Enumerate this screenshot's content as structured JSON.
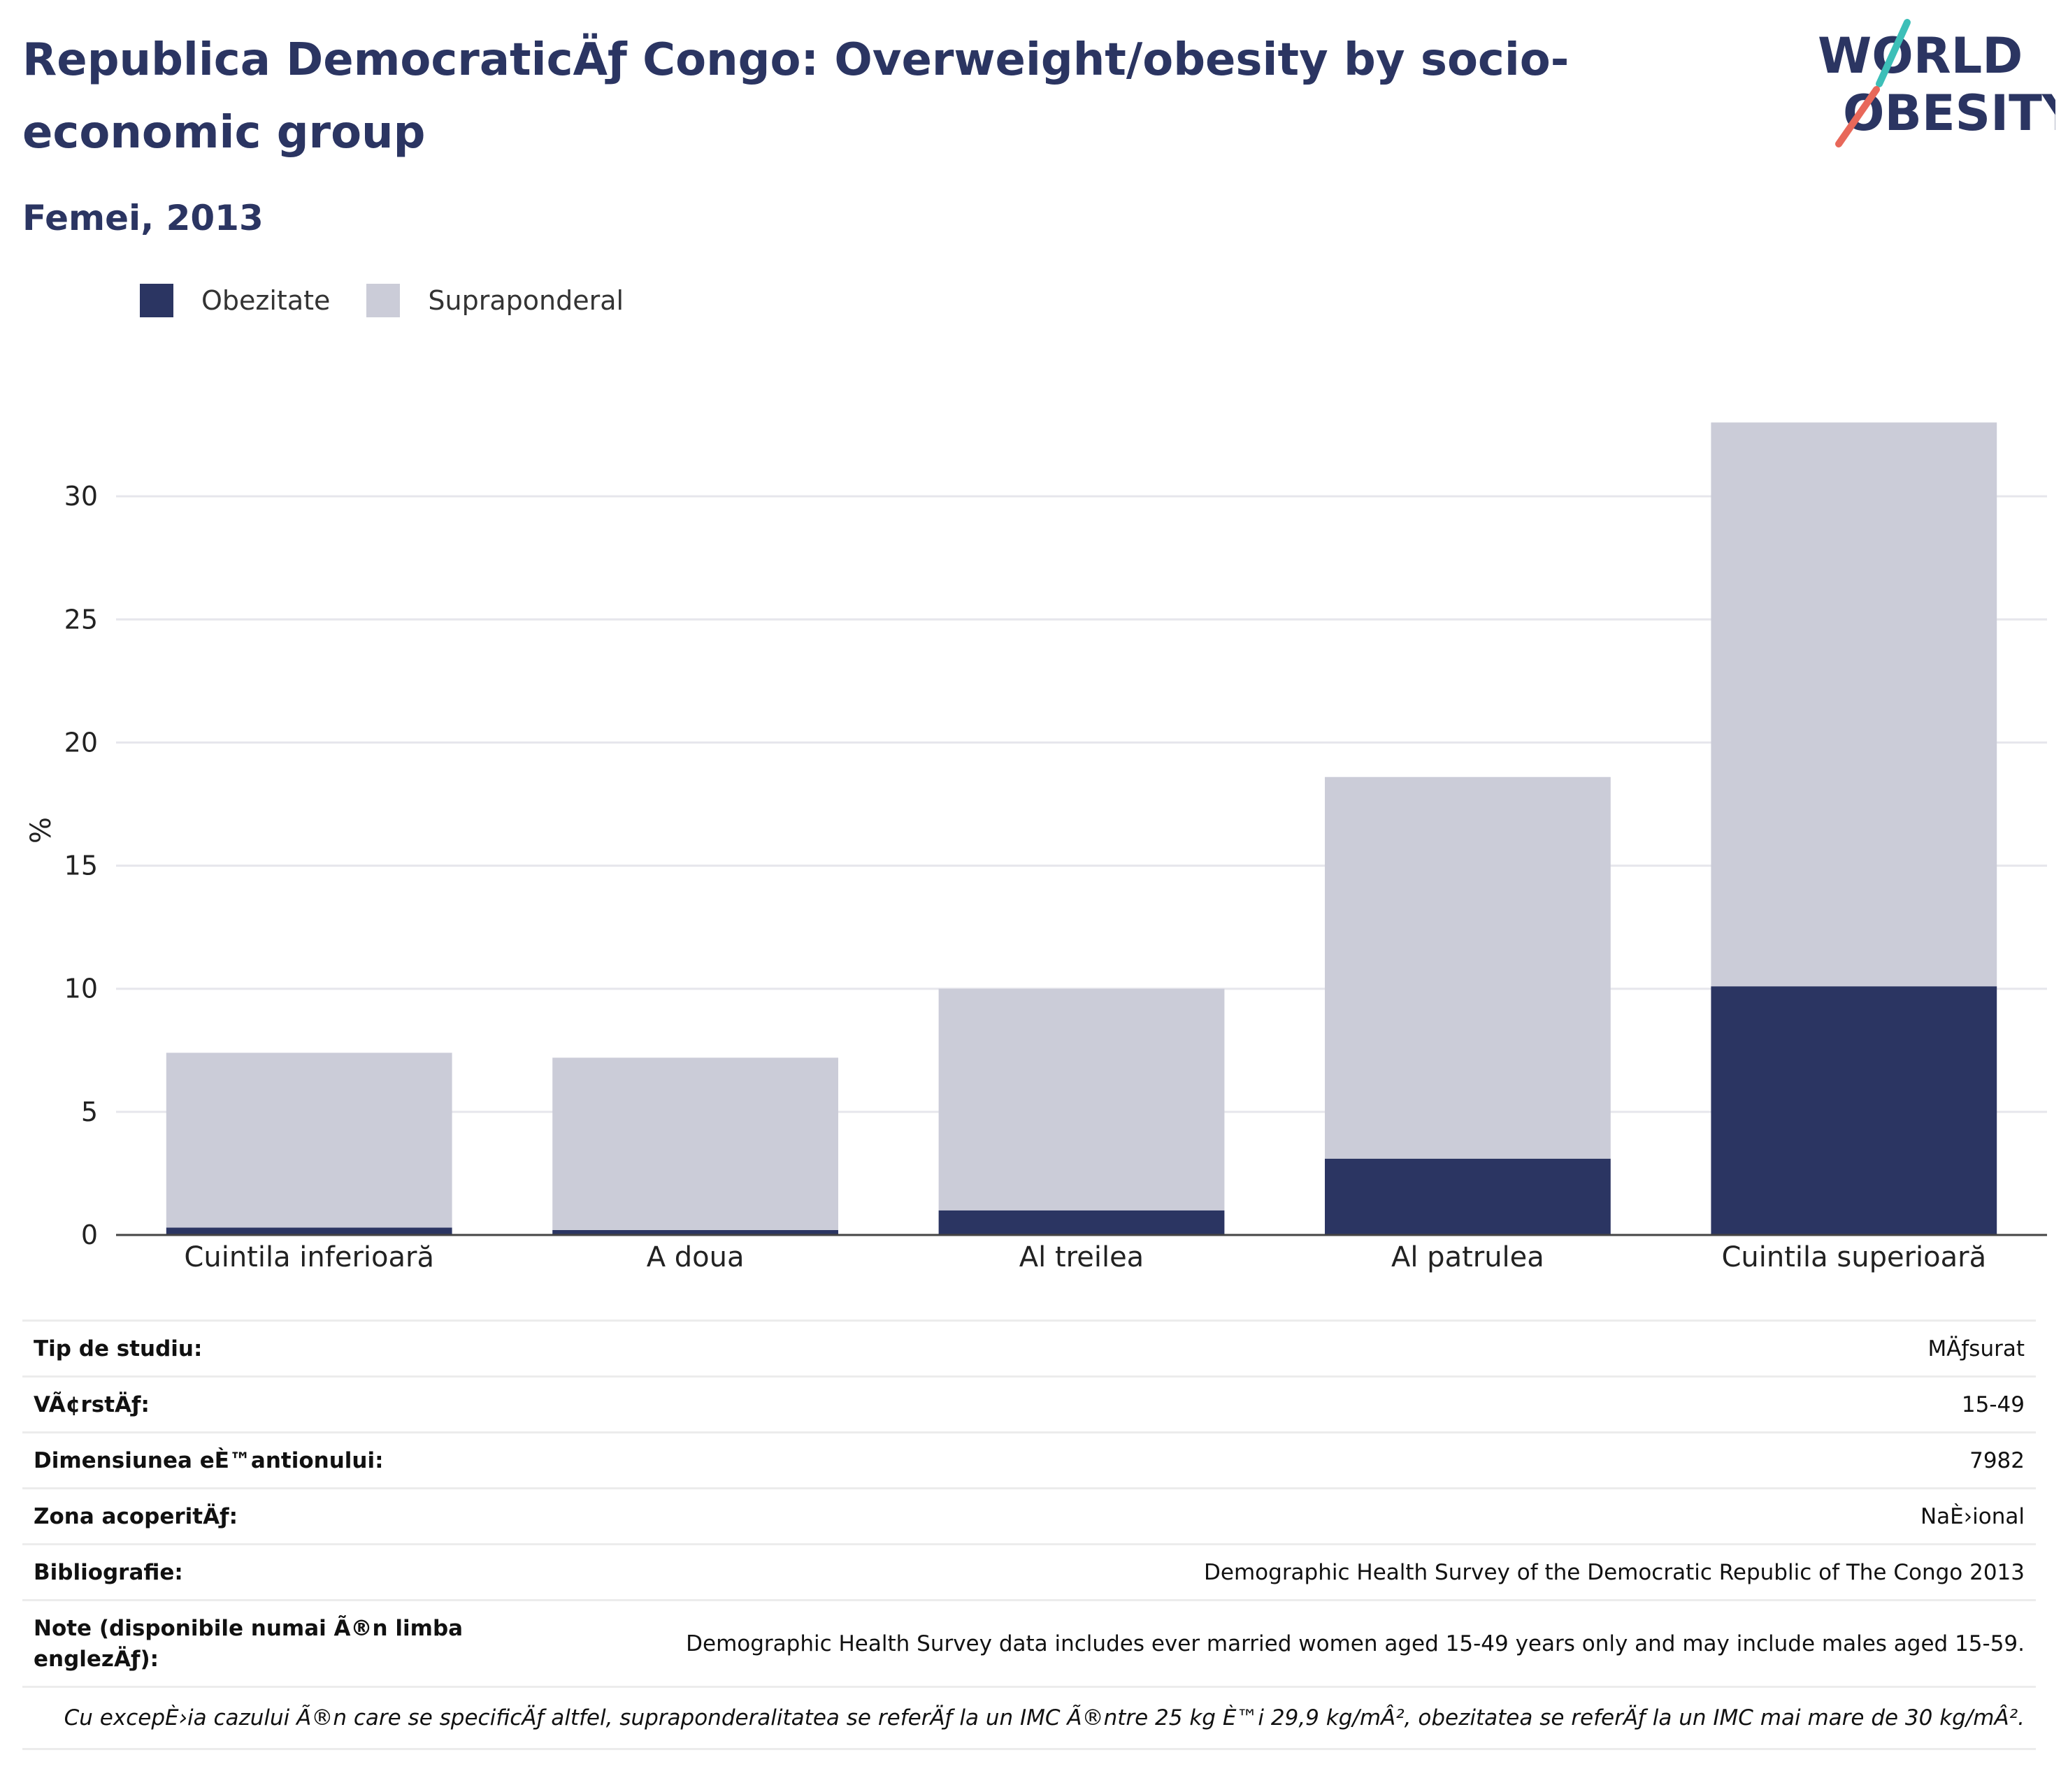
{
  "header": {
    "title": "Republica DemocraticÄƒ Congo: Overweight/obesity by socio-economic group",
    "subtitle": "Femei, 2013"
  },
  "logo": {
    "line1": "WORLD",
    "line2": "OBESITY"
  },
  "colors": {
    "obesity": "#2b3562",
    "overweight": "#cbccd8",
    "accent_teal": "#3dbfb8",
    "accent_coral": "#e8685a"
  },
  "chart_data": {
    "type": "bar",
    "stacked": true,
    "categories": [
      "Cuintila inferioară",
      "A doua",
      "Al treilea",
      "Al patrulea",
      "Cuintila superioară"
    ],
    "series": [
      {
        "name": "Obezitate",
        "color": "#2b3562",
        "values": [
          0.3,
          0.2,
          1.0,
          3.1,
          10.1
        ]
      },
      {
        "name": "Supraponderal",
        "color": "#cbccd8",
        "values": [
          7.1,
          7.0,
          9.0,
          15.5,
          22.9
        ]
      }
    ],
    "xlabel": "",
    "ylabel": "%",
    "ylim": [
      0,
      35
    ],
    "yticks": [
      0,
      5,
      10,
      15,
      20,
      25,
      30
    ],
    "grid": true,
    "legend": "top-left"
  },
  "info": {
    "rows": [
      {
        "label": "Tip de studiu:",
        "value": "MÄƒsurat"
      },
      {
        "label": "VÃ¢rstÄƒ:",
        "value": "15-49"
      },
      {
        "label": "Dimensiunea eÈ™antionului:",
        "value": "7982"
      },
      {
        "label": "Zona acoperitÄƒ:",
        "value": "NaÈ›ional"
      },
      {
        "label": "Bibliografie:",
        "value": "Demographic Health Survey of the Democratic Republic of The Congo 2013"
      },
      {
        "label": "Note (disponibile numai Ã®n limba englezÄƒ):",
        "value": "Demographic Health Survey data includes ever married women aged 15-49 years only and may include males aged 15-59."
      }
    ],
    "footnote": "Cu excepÈ›ia cazului Ã®n care se specificÄƒ altfel, supraponderalitatea se referÄƒ la un IMC Ã®ntre 25 kg È™i 29,9 kg/mÂ², obezitatea se referÄƒ la un IMC mai mare de 30 kg/mÂ²."
  }
}
